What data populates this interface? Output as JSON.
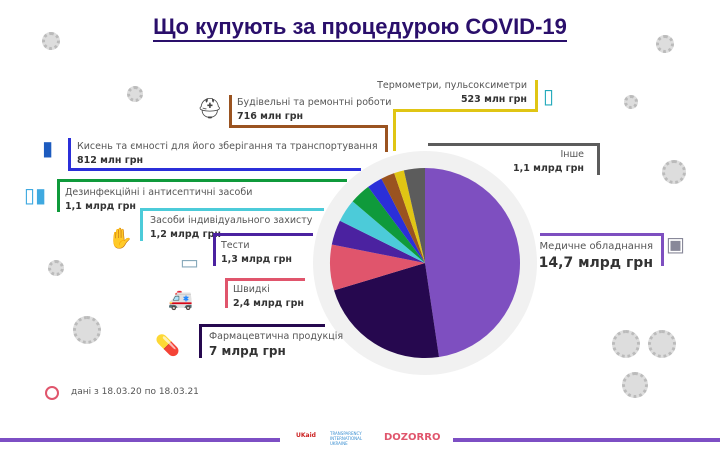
{
  "title": "Що купують за процедурою COVID-19",
  "note": "дані з 18.03.20 по 18.03.21",
  "logos": [
    "UKaid",
    "TRANSPARENCY INTERNATIONAL UKRAINE",
    "DOZORRO"
  ],
  "chart_data": {
    "type": "pie",
    "title": "Що купують за процедурою COVID-19",
    "unit": "млрд грн",
    "categories": [
      "Медичне обладнання",
      "Фармацевтична продукція",
      "Швидкі",
      "Тести",
      "Засоби індивідуального захисту",
      "Дезинфекційні і антисептичні засоби",
      "Кисень та ємності для  його зберігання та транспортування",
      "Будівельні та ремонтні роботи",
      "Термометри, пульсоксиметри",
      "Інше"
    ],
    "values": [
      14.7,
      7,
      2.4,
      1.3,
      1.2,
      1.1,
      0.812,
      0.716,
      0.523,
      1.1
    ],
    "value_labels": [
      "14,7 млрд грн",
      "7 млрд грн",
      "2,4 млрд грн",
      "1,3 млрд грн",
      "1,2 млрд грн",
      "1,1 млрд грн",
      "812 млн грн",
      "716 млн грн",
      "523 млн грн",
      "1,1 млрд грн"
    ],
    "colors": [
      "#7e4fc0",
      "#26084f",
      "#e0556c",
      "#4b22a0",
      "#4ccbd9",
      "#0f9a3b",
      "#2b2fd9",
      "#9a5320",
      "#e0c514",
      "#5c5c5c"
    ]
  }
}
